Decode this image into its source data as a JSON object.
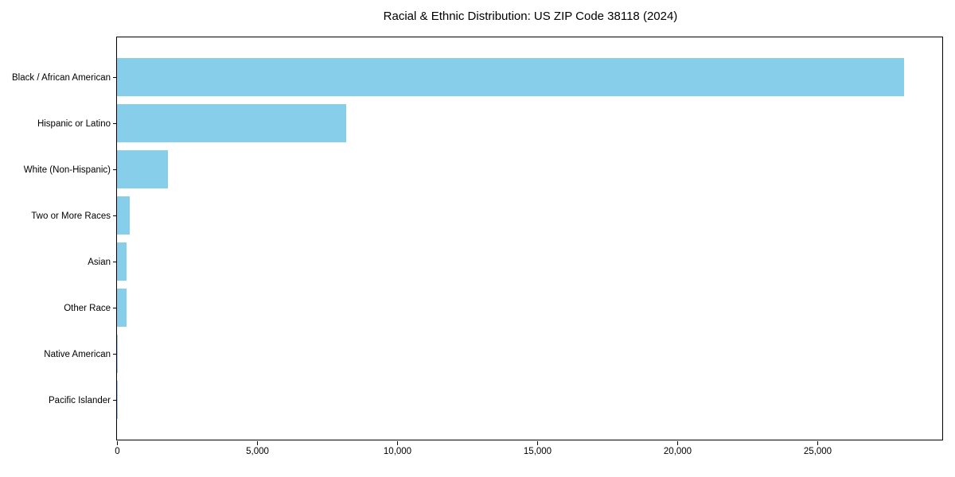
{
  "chart_data": {
    "type": "bar",
    "orientation": "horizontal",
    "title": "Racial & Ethnic Distribution: US ZIP Code 38118 (2024)",
    "xlabel": "",
    "ylabel": "",
    "categories": [
      "Black / African American",
      "Hispanic or Latino",
      "White (Non-Hispanic)",
      "Two or More Races",
      "Asian",
      "Other Race",
      "Native American",
      "Pacific Islander"
    ],
    "values": [
      28100,
      8190,
      1820,
      460,
      330,
      350,
      40,
      15
    ],
    "xlim": [
      0,
      29460
    ],
    "x_ticks": [
      0,
      5000,
      10000,
      15000,
      20000,
      25000
    ],
    "x_tick_labels": [
      "0",
      "5,000",
      "10,000",
      "15,000",
      "20,000",
      "25,000"
    ],
    "grid": false,
    "legend": null,
    "bar_color": "#87CEEB",
    "background_color": "#FFFFFF",
    "spine_color": "#000000"
  }
}
